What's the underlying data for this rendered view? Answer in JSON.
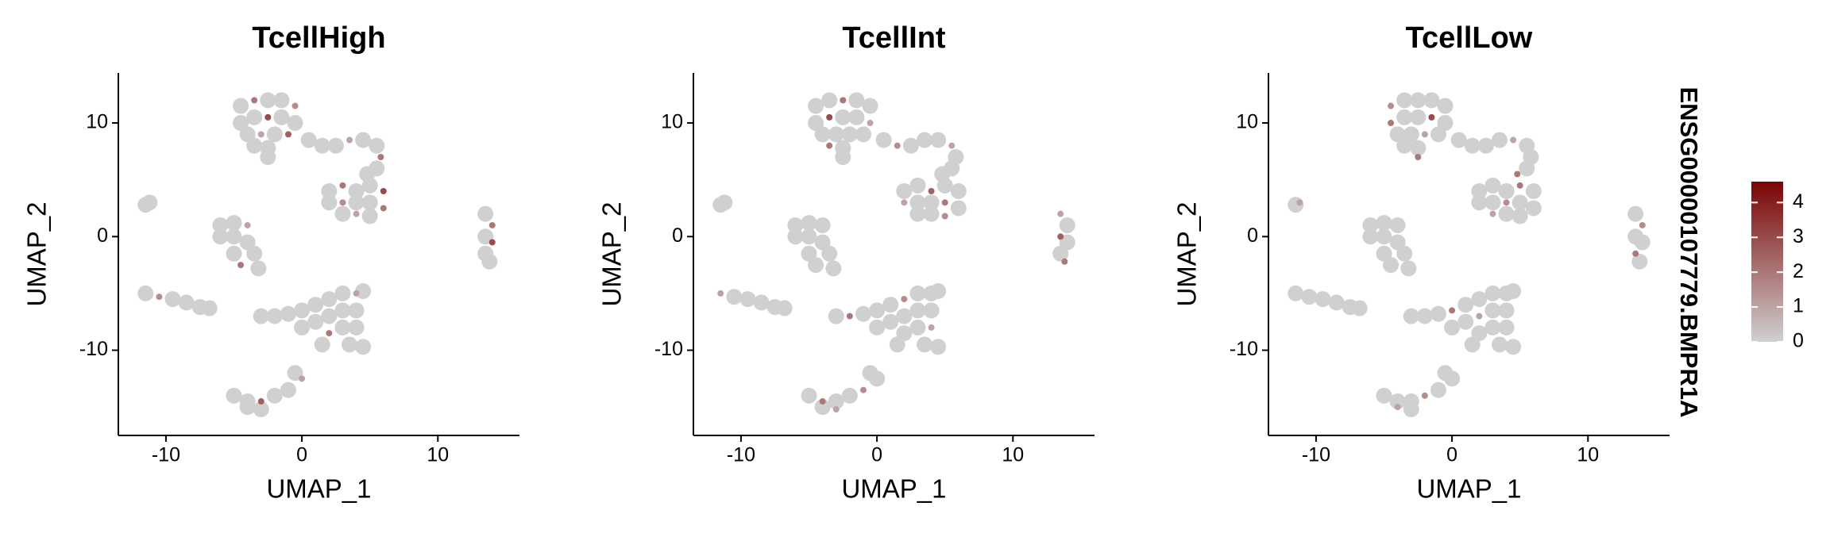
{
  "chart_data": [
    {
      "type": "scatter",
      "title": "TcellHigh",
      "xlabel": "UMAP_1",
      "ylabel": "UMAP_2",
      "xlim": [
        -13.5,
        16
      ],
      "ylim": [
        -17.5,
        14.4
      ],
      "xticks": [
        -10,
        0,
        10
      ],
      "yticks": [
        -10,
        0,
        10
      ],
      "x": [
        -4.5,
        -3.5,
        -2.5,
        -1.5,
        -0.5,
        -4.5,
        -3.5,
        -2.5,
        -1.5,
        -0.5,
        -4,
        -3,
        -2,
        -1,
        -3.5,
        -2.5,
        -2.5,
        0.5,
        1.5,
        2.5,
        3.5,
        4.5,
        5.5,
        5.8,
        5.5,
        2,
        3,
        4,
        5,
        6,
        2,
        3,
        4,
        5,
        6,
        3,
        4,
        5,
        4.8,
        13.5,
        14,
        13.5,
        14,
        13.5,
        13.8,
        -11.2,
        -11.5,
        -6,
        -5,
        -4,
        -6,
        -5,
        -4,
        -3.5,
        -5,
        -4.5,
        -3.2,
        -11.5,
        -10.5,
        -9.5,
        -8.5,
        -7.5,
        -6.8,
        -3,
        -2,
        -1,
        0,
        1,
        2,
        3,
        4,
        4.5,
        0,
        1,
        2,
        3,
        4,
        2,
        3,
        4,
        3.5,
        4.5,
        1.5,
        -5,
        -4,
        -3,
        -2,
        -1,
        0,
        -4,
        -3,
        -0.5
      ],
      "y": [
        11.5,
        12,
        12,
        12,
        11.5,
        10,
        10.5,
        10.5,
        10.5,
        10,
        9,
        9,
        9,
        9,
        8,
        7.8,
        7,
        8.5,
        8,
        8,
        8.5,
        8.5,
        8,
        7,
        6,
        4,
        4.5,
        4,
        4.5,
        4,
        3,
        3,
        3,
        3,
        2.5,
        2,
        2,
        1.8,
        5.5,
        2,
        1,
        0,
        -0.5,
        -1.5,
        -2.2,
        3,
        2.8,
        1,
        1.2,
        1,
        0,
        0,
        -0.5,
        -1.5,
        -1.5,
        -2.5,
        -2.8,
        -5,
        -5.3,
        -5.5,
        -5.8,
        -6.2,
        -6.3,
        -7,
        -7,
        -6.8,
        -6.5,
        -6,
        -5.5,
        -5,
        -5,
        -4.8,
        -8,
        -7.5,
        -7,
        -6.5,
        -6.5,
        -8.5,
        -8,
        -8,
        -9.5,
        -9.7,
        -9.5,
        -14,
        -14.5,
        -14.5,
        -14,
        -13.5,
        -12.5,
        -15,
        -15.2,
        -12
      ],
      "values": [
        0,
        2,
        0,
        0,
        1.5,
        0,
        0,
        3,
        0,
        0,
        0,
        1,
        0,
        2.5,
        0,
        0,
        0,
        0,
        0,
        0,
        1,
        0,
        0,
        2,
        0,
        0,
        2,
        0,
        0,
        3,
        0,
        1.5,
        0,
        0,
        2,
        0,
        1,
        0,
        0,
        0,
        2,
        0,
        3,
        0,
        0,
        0,
        0,
        0,
        0,
        1,
        0,
        0,
        0,
        0,
        0,
        2,
        0,
        0,
        1.5,
        0,
        0,
        0,
        0,
        0,
        0,
        0,
        0,
        0,
        0,
        0,
        1,
        0,
        0,
        0,
        0,
        0,
        0,
        2,
        0,
        0,
        0,
        0,
        0,
        0,
        0,
        2.5,
        0,
        0,
        1,
        0,
        0,
        0
      ]
    },
    {
      "type": "scatter",
      "title": "TcellInt",
      "xlabel": "UMAP_1",
      "ylabel": "UMAP_2",
      "xlim": [
        -13.5,
        16
      ],
      "ylim": [
        -17.5,
        14.4
      ],
      "xticks": [
        -10,
        0,
        10
      ],
      "yticks": [
        -10,
        0,
        10
      ],
      "x": [
        -4.5,
        -3.5,
        -2.5,
        -1.5,
        -0.5,
        -4.5,
        -3.5,
        -2.5,
        -1.5,
        -0.5,
        -4,
        -3,
        -2,
        -1,
        -3.5,
        -2.5,
        -2.5,
        0.5,
        1.5,
        2.5,
        3.5,
        4.5,
        5.5,
        5.8,
        5.5,
        2,
        3,
        4,
        5,
        6,
        2,
        3,
        4,
        5,
        6,
        3,
        4,
        5,
        4.8,
        13.5,
        14,
        13.5,
        14,
        13.5,
        13.8,
        -11.2,
        -11.5,
        -6,
        -5,
        -4,
        -6,
        -5,
        -4,
        -3.5,
        -5,
        -4.5,
        -3.2,
        -11.5,
        -10.5,
        -9.5,
        -8.5,
        -7.5,
        -6.8,
        -3,
        -2,
        -1,
        0,
        1,
        2,
        3,
        4,
        4.5,
        0,
        1,
        2,
        3,
        4,
        2,
        3,
        4,
        3.5,
        4.5,
        1.5,
        -5,
        -4,
        -3,
        -2,
        -1,
        0,
        -4,
        -3,
        -0.5
      ],
      "y": [
        11.5,
        12,
        12,
        12,
        11.5,
        10,
        10.5,
        10.5,
        10.5,
        10,
        9,
        9,
        9,
        9,
        8,
        7.8,
        7,
        8.5,
        8,
        8,
        8.5,
        8.5,
        8,
        7,
        6,
        4,
        4.5,
        4,
        4.5,
        4,
        3,
        3,
        3,
        3,
        2.5,
        2,
        2,
        1.8,
        5.5,
        2,
        1,
        0,
        -0.5,
        -1.5,
        -2.2,
        3,
        2.8,
        1,
        1.2,
        1,
        0,
        0,
        -0.5,
        -1.5,
        -1.5,
        -2.5,
        -2.8,
        -5,
        -5.3,
        -5.5,
        -5.8,
        -6.2,
        -6.3,
        -7,
        -7,
        -6.8,
        -6.5,
        -6,
        -5.5,
        -5,
        -5,
        -4.8,
        -8,
        -7.5,
        -7,
        -6.5,
        -6.5,
        -8.5,
        -8,
        -8,
        -9.5,
        -9.7,
        -9.5,
        -14,
        -14.5,
        -14.5,
        -14,
        -13.5,
        -12.5,
        -15,
        -15.2,
        -12
      ],
      "values": [
        0,
        0,
        2,
        0,
        0,
        0,
        3,
        0,
        0,
        1,
        0,
        0,
        0,
        0,
        2,
        0,
        0,
        0,
        1.5,
        0,
        0,
        0,
        1,
        0,
        0,
        0,
        0,
        2.5,
        0,
        0,
        1,
        0,
        0,
        2,
        0,
        0,
        0,
        1.5,
        0,
        1,
        0,
        2.5,
        0,
        0,
        2,
        0,
        0,
        0,
        0,
        0,
        0,
        0,
        0,
        0,
        0,
        0,
        0,
        1,
        0,
        0,
        0,
        0,
        0,
        0,
        2,
        0,
        0,
        0,
        1.5,
        0,
        0,
        0,
        0,
        0,
        0,
        0,
        0,
        0,
        0,
        1,
        0,
        0,
        0,
        0,
        2,
        0,
        0,
        1.5,
        0,
        0,
        1,
        0
      ]
    },
    {
      "type": "scatter",
      "title": "TcellLow",
      "xlabel": "UMAP_1",
      "ylabel": "UMAP_2",
      "xlim": [
        -13.5,
        16
      ],
      "ylim": [
        -17.5,
        14.4
      ],
      "xticks": [
        -10,
        0,
        10
      ],
      "yticks": [
        -10,
        0,
        10
      ],
      "x": [
        -4.5,
        -3.5,
        -2.5,
        -1.5,
        -0.5,
        -4.5,
        -3.5,
        -2.5,
        -1.5,
        -0.5,
        -4,
        -3,
        -2,
        -1,
        -3.5,
        -2.5,
        -2.5,
        0.5,
        1.5,
        2.5,
        3.5,
        4.5,
        5.5,
        5.8,
        5.5,
        2,
        3,
        4,
        5,
        6,
        2,
        3,
        4,
        5,
        6,
        3,
        4,
        5,
        4.8,
        13.5,
        14,
        13.5,
        14,
        13.5,
        13.8,
        -11.2,
        -11.5,
        -6,
        -5,
        -4,
        -6,
        -5,
        -4,
        -3.5,
        -5,
        -4.5,
        -3.2,
        -11.5,
        -10.5,
        -9.5,
        -8.5,
        -7.5,
        -6.8,
        -3,
        -2,
        -1,
        0,
        1,
        2,
        3,
        4,
        4.5,
        0,
        1,
        2,
        3,
        4,
        2,
        3,
        4,
        3.5,
        4.5,
        1.5,
        -5,
        -4,
        -3,
        -2,
        -1,
        0,
        -4,
        -3,
        -0.5
      ],
      "y": [
        11.5,
        12,
        12,
        12,
        11.5,
        10,
        10.5,
        10.5,
        10.5,
        10,
        9,
        9,
        9,
        9,
        8,
        7.8,
        7,
        8.5,
        8,
        8,
        8.5,
        8.5,
        8,
        7,
        6,
        4,
        4.5,
        4,
        4.5,
        4,
        3,
        3,
        3,
        3,
        2.5,
        2,
        2,
        1.8,
        5.5,
        2,
        1,
        0,
        -0.5,
        -1.5,
        -2.2,
        3,
        2.8,
        1,
        1.2,
        1,
        0,
        0,
        -0.5,
        -1.5,
        -1.5,
        -2.5,
        -2.8,
        -5,
        -5.3,
        -5.5,
        -5.8,
        -6.2,
        -6.3,
        -7,
        -7,
        -6.8,
        -6.5,
        -6,
        -5.5,
        -5,
        -5,
        -4.8,
        -8,
        -7.5,
        -7,
        -6.5,
        -6.5,
        -8.5,
        -8,
        -8,
        -9.5,
        -9.7,
        -9.5,
        -14,
        -14.5,
        -14.5,
        -14,
        -13.5,
        -12.5,
        -15,
        -15.2,
        -12
      ],
      "values": [
        1.5,
        0,
        0,
        0,
        0,
        2,
        0,
        0,
        3,
        0,
        0,
        0,
        1,
        0,
        0,
        0,
        2,
        0,
        0,
        0,
        0,
        1,
        0,
        0,
        0,
        0,
        0,
        0,
        2,
        0,
        0,
        0,
        1.5,
        0,
        0,
        1,
        0,
        0,
        2,
        0,
        1.5,
        0,
        0,
        2,
        0,
        1,
        0,
        0,
        0,
        0,
        0,
        0,
        0,
        0,
        0,
        0,
        0,
        0,
        0,
        0,
        0,
        0,
        0,
        0,
        0,
        0,
        2,
        0,
        0,
        0,
        0,
        0,
        0,
        0,
        1,
        0,
        0,
        0,
        0,
        0,
        0,
        0,
        0,
        0,
        0,
        0,
        1.5,
        0,
        0,
        1,
        0,
        0
      ]
    }
  ],
  "colorbar": {
    "title": "ENSG00000107779.BMPR1A",
    "lim": [
      0,
      4.6
    ],
    "ticks": [
      0,
      1,
      2,
      3,
      4
    ],
    "low_color": "#d0d0d0",
    "high_color": "#7a0404"
  }
}
